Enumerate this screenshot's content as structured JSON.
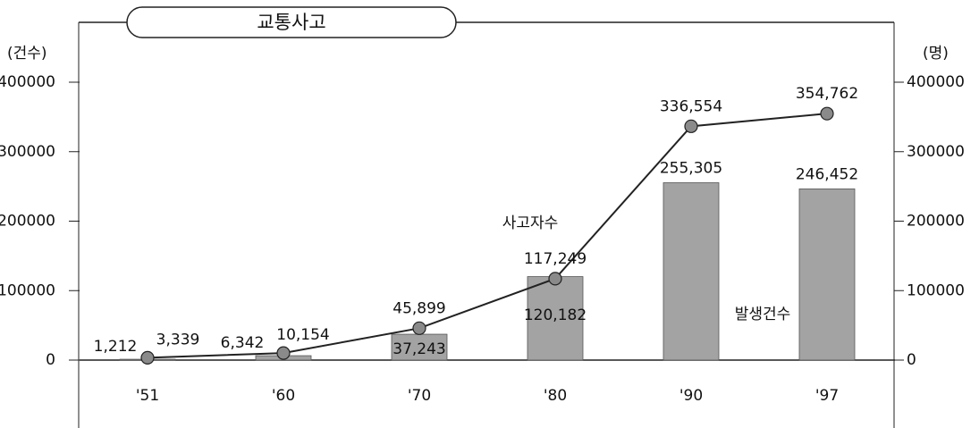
{
  "chart_data": {
    "type": "combo",
    "title": "교통사고",
    "ylabel": "(건수)",
    "y2label": "(명)",
    "categories": [
      "'51",
      "'60",
      "'70",
      "'80",
      "'90",
      "'97"
    ],
    "ylim": [
      0,
      400000
    ],
    "yticks": [
      0,
      100000,
      200000,
      300000,
      400000
    ],
    "y2lim": [
      0,
      400000
    ],
    "y2ticks": [
      0,
      100000,
      200000,
      300000,
      400000
    ],
    "series": [
      {
        "name": "발생건수",
        "type": "bar",
        "color": "#a3a3a3",
        "values": [
          1212,
          6342,
          37243,
          120182,
          255305,
          246452
        ],
        "value_labels": [
          "1,212",
          "6,342",
          "37,243",
          "120,182",
          "255,305",
          "246,452"
        ]
      },
      {
        "name": "사고자수",
        "type": "line",
        "axis": "y2",
        "color": "#222222",
        "values": [
          3339,
          10154,
          45899,
          117249,
          336554,
          354762
        ],
        "value_labels": [
          "3,339",
          "10,154",
          "45,899",
          "117,249",
          "336,554",
          "354,762"
        ]
      }
    ]
  }
}
